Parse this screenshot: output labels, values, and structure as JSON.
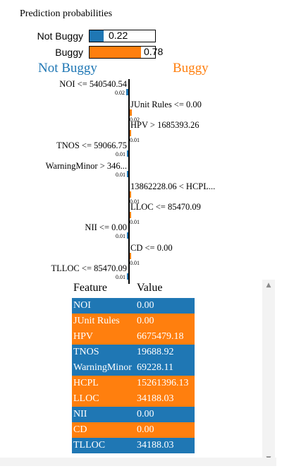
{
  "title": "Prediction probabilities",
  "colors": {
    "not_buggy": "#1f77b4",
    "buggy": "#ff7f0e"
  },
  "probabilities": [
    {
      "label": "Not Buggy",
      "value": "0.22",
      "fraction": 0.22
    },
    {
      "label": "Buggy",
      "value": "0.78",
      "fraction": 0.78
    }
  ],
  "headers": {
    "left": "Not Buggy",
    "right": "Buggy"
  },
  "explanation": [
    {
      "feature": "NOI <= 540540.54",
      "weight": "0.02",
      "side": "left",
      "magnitude": 0.02
    },
    {
      "feature": "JUnit Rules <= 0.00",
      "weight": "0.02",
      "side": "right",
      "magnitude": 0.02
    },
    {
      "feature": "HPV > 1685393.26",
      "weight": "0.01",
      "side": "right",
      "magnitude": 0.01
    },
    {
      "feature": "TNOS <= 59066.75",
      "weight": "0.01",
      "side": "left",
      "magnitude": 0.01
    },
    {
      "feature": "WarningMinor > 346...",
      "weight": "0.01",
      "side": "left",
      "magnitude": 0.01
    },
    {
      "feature": "13862228.06 < HCPL...",
      "weight": "0.01",
      "side": "right",
      "magnitude": 0.01
    },
    {
      "feature": "LLOC <= 85470.09",
      "weight": "0.01",
      "side": "right",
      "magnitude": 0.01
    },
    {
      "feature": "NII <= 0.00",
      "weight": "0.01",
      "side": "left",
      "magnitude": 0.01
    },
    {
      "feature": "CD <= 0.00",
      "weight": "0.01",
      "side": "right",
      "magnitude": 0.01
    },
    {
      "feature": "TLLOC <= 85470.09",
      "weight": "0.01",
      "side": "left",
      "magnitude": 0.01
    }
  ],
  "table": {
    "col_feature": "Feature",
    "col_value": "Value",
    "rows": [
      {
        "feature": "NOI",
        "value": "0.00",
        "side": "left"
      },
      {
        "feature": "JUnit Rules",
        "value": "0.00",
        "side": "right"
      },
      {
        "feature": "HPV",
        "value": "6675479.18",
        "side": "right"
      },
      {
        "feature": "TNOS",
        "value": "19688.92",
        "side": "left"
      },
      {
        "feature": "WarningMinor",
        "value": "69228.11",
        "side": "left"
      },
      {
        "feature": "HCPL",
        "value": "15261396.13",
        "side": "right"
      },
      {
        "feature": "LLOC",
        "value": "34188.03",
        "side": "right"
      },
      {
        "feature": "NII",
        "value": "0.00",
        "side": "left"
      },
      {
        "feature": "CD",
        "value": "0.00",
        "side": "right"
      },
      {
        "feature": "TLLOC",
        "value": "34188.03",
        "side": "left"
      }
    ]
  },
  "scrollbar": {
    "up_icon": "arrow-up-icon",
    "down_icon": "arrow-down-icon"
  }
}
